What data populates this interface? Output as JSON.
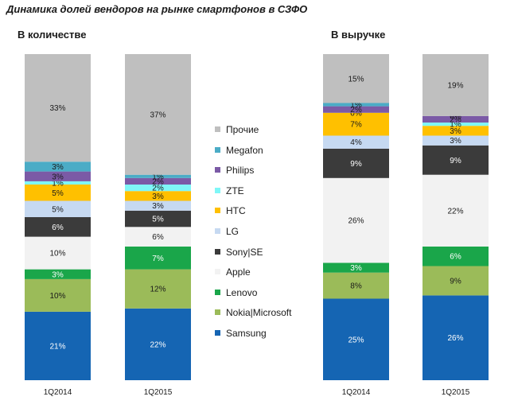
{
  "title": "Динамика долей вендоров на рынке смартфонов в СЗФО",
  "chart_data": [
    {
      "type": "bar",
      "stacked": true,
      "title": "В количестве",
      "categories": [
        "1Q2014",
        "1Q2015"
      ],
      "series": [
        {
          "name": "Samsung",
          "color": "#1565b3",
          "values": [
            21,
            22
          ],
          "labels": [
            "21%",
            "22%"
          ]
        },
        {
          "name": "Nokia|Microsoft",
          "color": "#9bbb59",
          "values": [
            10,
            12
          ],
          "labels": [
            "10%",
            "12%"
          ]
        },
        {
          "name": "Lenovo",
          "color": "#1aa64a",
          "values": [
            3,
            7
          ],
          "labels": [
            "3%",
            "7%"
          ]
        },
        {
          "name": "Apple",
          "color": "#f2f2f2",
          "values": [
            10,
            6
          ],
          "labels": [
            "10%",
            "6%"
          ]
        },
        {
          "name": "Sony|SE",
          "color": "#3b3b3b",
          "values": [
            6,
            5
          ],
          "labels": [
            "6%",
            "5%"
          ]
        },
        {
          "name": "LG",
          "color": "#c6d9f1",
          "values": [
            5,
            3
          ],
          "labels": [
            "5%",
            "3%"
          ]
        },
        {
          "name": "HTC",
          "color": "#ffc000",
          "values": [
            5,
            3
          ],
          "labels": [
            "5%",
            "3%"
          ]
        },
        {
          "name": "ZTE",
          "color": "#7ff7f7",
          "values": [
            1,
            2
          ],
          "labels": [
            "1%",
            "2%"
          ]
        },
        {
          "name": "Philips",
          "color": "#7b5aa6",
          "values": [
            3,
            2
          ],
          "labels": [
            "3%",
            "2%"
          ]
        },
        {
          "name": "Megafon",
          "color": "#4bacc6",
          "values": [
            3,
            1
          ],
          "labels": [
            "3%",
            "1%"
          ]
        },
        {
          "name": "Прочие",
          "color": "#bfbfbf",
          "values": [
            33,
            37
          ],
          "labels": [
            "33%",
            "37%"
          ]
        }
      ]
    },
    {
      "type": "bar",
      "stacked": true,
      "title": "В выручке",
      "categories": [
        "1Q2014",
        "1Q2015"
      ],
      "series": [
        {
          "name": "Samsung",
          "color": "#1565b3",
          "values": [
            25,
            26
          ],
          "labels": [
            "25%",
            "26%"
          ]
        },
        {
          "name": "Nokia|Microsoft",
          "color": "#9bbb59",
          "values": [
            8,
            9
          ],
          "labels": [
            "8%",
            "9%"
          ]
        },
        {
          "name": "Lenovo",
          "color": "#1aa64a",
          "values": [
            3,
            6
          ],
          "labels": [
            "3%",
            "6%"
          ]
        },
        {
          "name": "Apple",
          "color": "#f2f2f2",
          "values": [
            26,
            22
          ],
          "labels": [
            "26%",
            "22%"
          ]
        },
        {
          "name": "Sony|SE",
          "color": "#3b3b3b",
          "values": [
            9,
            9
          ],
          "labels": [
            "9%",
            "9%"
          ]
        },
        {
          "name": "LG",
          "color": "#c6d9f1",
          "values": [
            4,
            3
          ],
          "labels": [
            "4%",
            "3%"
          ]
        },
        {
          "name": "HTC",
          "color": "#ffc000",
          "values": [
            7,
            3
          ],
          "labels": [
            "7%",
            "3%"
          ]
        },
        {
          "name": "ZTE",
          "color": "#7ff7f7",
          "values": [
            0,
            1
          ],
          "labels": [
            "0%",
            "1%"
          ]
        },
        {
          "name": "Philips",
          "color": "#7b5aa6",
          "values": [
            2,
            2
          ],
          "labels": [
            "2%",
            "2%"
          ]
        },
        {
          "name": "Megafon",
          "color": "#4bacc6",
          "values": [
            1,
            0
          ],
          "labels": [
            "1%",
            "0%"
          ]
        },
        {
          "name": "Прочие",
          "color": "#bfbfbf",
          "values": [
            15,
            19
          ],
          "labels": [
            "15%",
            "19%"
          ]
        }
      ]
    }
  ],
  "legend": [
    {
      "name": "Прочие",
      "color": "#bfbfbf"
    },
    {
      "name": "Megafon",
      "color": "#4bacc6"
    },
    {
      "name": "Philips",
      "color": "#7b5aa6"
    },
    {
      "name": "ZTE",
      "color": "#7ff7f7"
    },
    {
      "name": "HTC",
      "color": "#ffc000"
    },
    {
      "name": "LG",
      "color": "#c6d9f1"
    },
    {
      "name": "Sony|SE",
      "color": "#3b3b3b"
    },
    {
      "name": "Apple",
      "color": "#f2f2f2"
    },
    {
      "name": "Lenovo",
      "color": "#1aa64a"
    },
    {
      "name": "Nokia|Microsoft",
      "color": "#9bbb59"
    },
    {
      "name": "Samsung",
      "color": "#1565b3"
    }
  ]
}
